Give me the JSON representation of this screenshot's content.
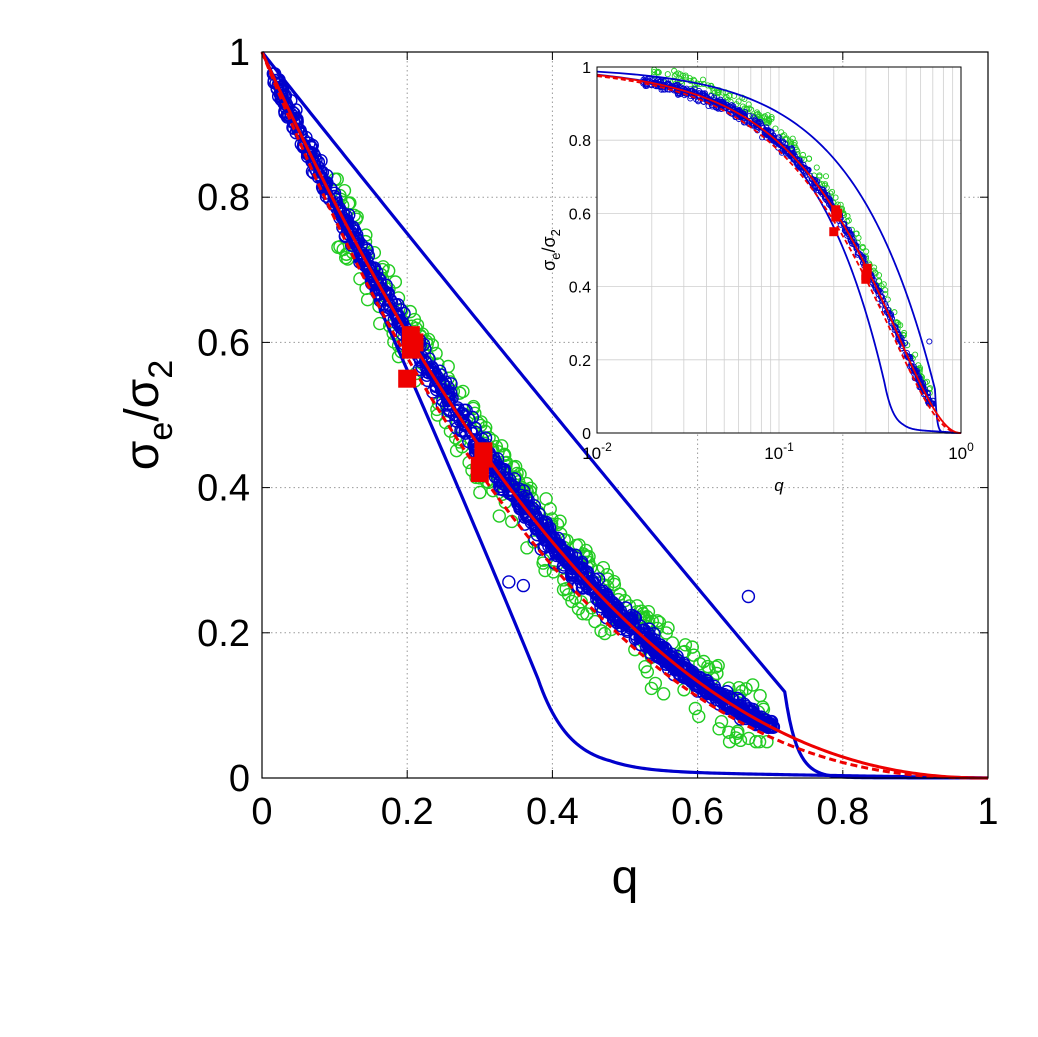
{
  "chart_data": [
    {
      "type": "scatter",
      "title": "",
      "xlabel": "q",
      "ylabel": {
        "main": "σ",
        "sub1": "e",
        "slash": "/σ",
        "sub2": "2"
      },
      "xlim": [
        0,
        1
      ],
      "ylim": [
        0,
        1
      ],
      "xticks": [
        "0",
        "0.2",
        "0.4",
        "0.6",
        "0.8",
        "1"
      ],
      "yticks": [
        "0",
        "0.2",
        "0.4",
        "0.6",
        "0.8",
        "1"
      ],
      "grid": true,
      "colors": {
        "blue": "#0000cc",
        "green": "#22cc22",
        "red": "#ee0000"
      },
      "series": [
        {
          "kind": "scatter-circles",
          "color": "blue",
          "description_points": [
            [
              0.02,
              0.95
            ],
            [
              0.05,
              0.9
            ],
            [
              0.1,
              0.82
            ],
            [
              0.15,
              0.74
            ],
            [
              0.2,
              0.66
            ],
            [
              0.25,
              0.57
            ],
            [
              0.3,
              0.5
            ],
            [
              0.35,
              0.41
            ],
            [
              0.4,
              0.34
            ],
            [
              0.45,
              0.28
            ],
            [
              0.5,
              0.23
            ],
            [
              0.55,
              0.18
            ],
            [
              0.6,
              0.15
            ],
            [
              0.65,
              0.12
            ],
            [
              0.7,
              0.09
            ],
            [
              0.67,
              0.25
            ],
            [
              0.34,
              0.27
            ]
          ]
        },
        {
          "kind": "scatter-circles",
          "color": "green",
          "points": [
            [
              0.12,
              0.81
            ],
            [
              0.18,
              0.71
            ],
            [
              0.22,
              0.68
            ],
            [
              0.27,
              0.58
            ],
            [
              0.3,
              0.51
            ],
            [
              0.33,
              0.49
            ],
            [
              0.38,
              0.4
            ],
            [
              0.42,
              0.37
            ],
            [
              0.45,
              0.35
            ],
            [
              0.48,
              0.28
            ],
            [
              0.52,
              0.26
            ],
            [
              0.55,
              0.24
            ],
            [
              0.58,
              0.2
            ],
            [
              0.6,
              0.23
            ],
            [
              0.63,
              0.14
            ],
            [
              0.66,
              0.11
            ],
            [
              0.68,
              0.12
            ]
          ]
        },
        {
          "kind": "squares",
          "color": "red",
          "points": [
            [
              0.2,
              0.55
            ],
            [
              0.205,
              0.59
            ],
            [
              0.21,
              0.6
            ],
            [
              0.205,
              0.61
            ],
            [
              0.3,
              0.42
            ],
            [
              0.305,
              0.44
            ],
            [
              0.3,
              0.43
            ],
            [
              0.305,
              0.45
            ]
          ]
        },
        {
          "kind": "line",
          "color": "red",
          "style": "solid",
          "formula": "(1-q)^2.2"
        },
        {
          "kind": "line",
          "color": "red",
          "style": "dashed",
          "formula": "(1-q)^2.4"
        },
        {
          "kind": "line",
          "color": "blue",
          "style": "solid",
          "name_hint": "upper bound",
          "formula": "(1-q)^1.3 convex-ish"
        },
        {
          "kind": "line",
          "color": "blue",
          "style": "solid",
          "name_hint": "lower bound",
          "formula": "steep to q≈0.45"
        }
      ]
    },
    {
      "type": "scatter",
      "title": "",
      "inset": true,
      "xlabel": "q",
      "ylabel": {
        "main": "σ",
        "sub1": "e",
        "slash": "/σ",
        "sub2": "2"
      },
      "xscale": "log",
      "xlim": [
        0.01,
        1
      ],
      "ylim": [
        0,
        1
      ],
      "xticks": [
        {
          "base": "10",
          "exp": "-2"
        },
        {
          "base": "10",
          "exp": "-1"
        },
        {
          "base": "10",
          "exp": "0"
        }
      ],
      "yticks": [
        "0",
        "0.2",
        "0.4",
        "0.6",
        "0.8",
        "1"
      ],
      "grid": true
    }
  ]
}
